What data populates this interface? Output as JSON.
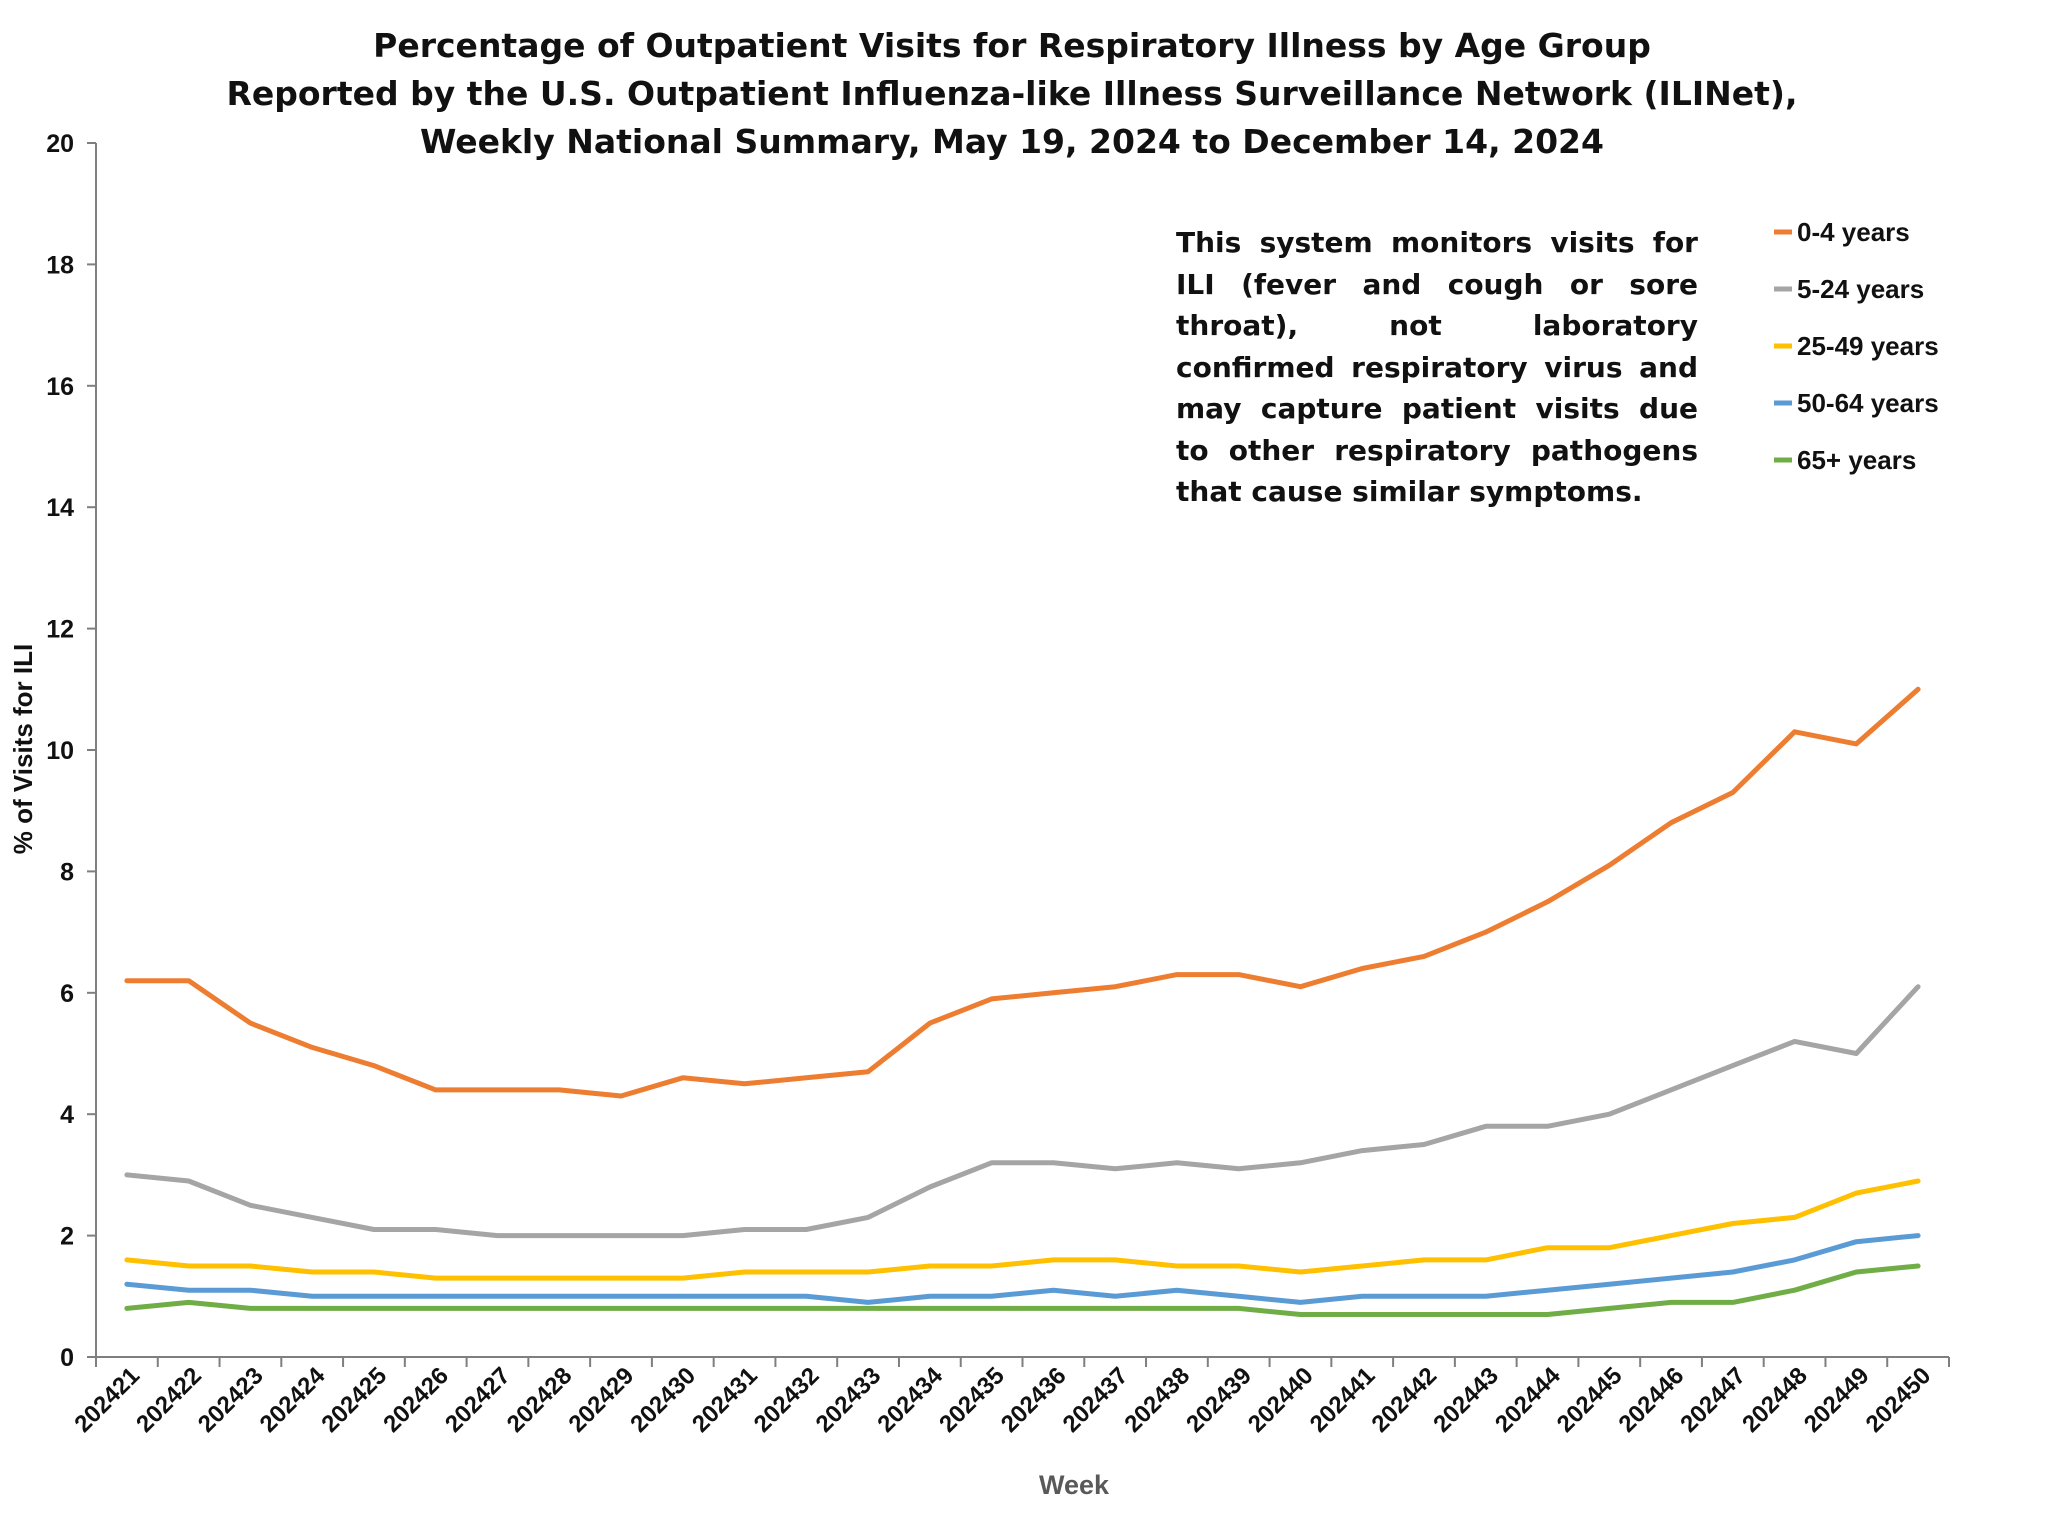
{
  "chart_data": {
    "type": "line",
    "title": "Percentage of Outpatient Visits for Respiratory Illness by Age Group",
    "subtitle": [
      "Reported by the U.S. Outpatient Influenza-like Illness Surveillance Network (ILINet),",
      "Weekly National Summary, May 19, 2024 to December 14, 2024"
    ],
    "annotation": "This system monitors visits for ILI (fever and cough or sore throat), not laboratory confirmed respiratory virus and may capture patient visits due to other respiratory pathogens that cause similar symptoms.",
    "xlabel": "Week",
    "ylabel": "% of Visits for ILI",
    "ylim": [
      0,
      20
    ],
    "yticks": [
      0,
      2,
      4,
      6,
      8,
      10,
      12,
      14,
      16,
      18,
      20
    ],
    "grid": false,
    "legend_position": "top-right",
    "categories": [
      "202421",
      "202422",
      "202423",
      "202424",
      "202425",
      "202426",
      "202427",
      "202428",
      "202429",
      "202430",
      "202431",
      "202432",
      "202433",
      "202434",
      "202435",
      "202436",
      "202437",
      "202438",
      "202439",
      "202440",
      "202441",
      "202442",
      "202443",
      "202444",
      "202445",
      "202446",
      "202447",
      "202448",
      "202449",
      "202450"
    ],
    "series": [
      {
        "name": "0-4 years",
        "color": "#ED7D31",
        "values": [
          6.2,
          6.2,
          5.5,
          5.1,
          4.8,
          4.4,
          4.4,
          4.4,
          4.3,
          4.6,
          4.5,
          4.6,
          4.7,
          5.5,
          5.9,
          6.0,
          6.1,
          6.3,
          6.3,
          6.1,
          6.4,
          6.6,
          7.0,
          7.5,
          8.1,
          8.8,
          9.3,
          10.3,
          10.1,
          11.0
        ]
      },
      {
        "name": "5-24 years",
        "color": "#A5A5A5",
        "values": [
          3.0,
          2.9,
          2.5,
          2.3,
          2.1,
          2.1,
          2.0,
          2.0,
          2.0,
          2.0,
          2.1,
          2.1,
          2.3,
          2.8,
          3.2,
          3.2,
          3.1,
          3.2,
          3.1,
          3.2,
          3.4,
          3.5,
          3.8,
          3.8,
          4.0,
          4.4,
          4.8,
          5.2,
          5.0,
          6.1
        ]
      },
      {
        "name": "25-49 years",
        "color": "#FFC000",
        "values": [
          1.6,
          1.5,
          1.5,
          1.4,
          1.4,
          1.3,
          1.3,
          1.3,
          1.3,
          1.3,
          1.4,
          1.4,
          1.4,
          1.5,
          1.5,
          1.6,
          1.6,
          1.5,
          1.5,
          1.4,
          1.5,
          1.6,
          1.6,
          1.8,
          1.8,
          2.0,
          2.2,
          2.3,
          2.7,
          2.9
        ]
      },
      {
        "name": "50-64 years",
        "color": "#5B9BD5",
        "values": [
          1.2,
          1.1,
          1.1,
          1.0,
          1.0,
          1.0,
          1.0,
          1.0,
          1.0,
          1.0,
          1.0,
          1.0,
          0.9,
          1.0,
          1.0,
          1.1,
          1.0,
          1.1,
          1.0,
          0.9,
          1.0,
          1.0,
          1.0,
          1.1,
          1.2,
          1.3,
          1.4,
          1.6,
          1.9,
          2.0
        ]
      },
      {
        "name": "65+ years",
        "color": "#70AD47",
        "values": [
          0.8,
          0.9,
          0.8,
          0.8,
          0.8,
          0.8,
          0.8,
          0.8,
          0.8,
          0.8,
          0.8,
          0.8,
          0.8,
          0.8,
          0.8,
          0.8,
          0.8,
          0.8,
          0.8,
          0.7,
          0.7,
          0.7,
          0.7,
          0.7,
          0.8,
          0.9,
          0.9,
          1.1,
          1.4,
          1.5
        ]
      }
    ]
  }
}
